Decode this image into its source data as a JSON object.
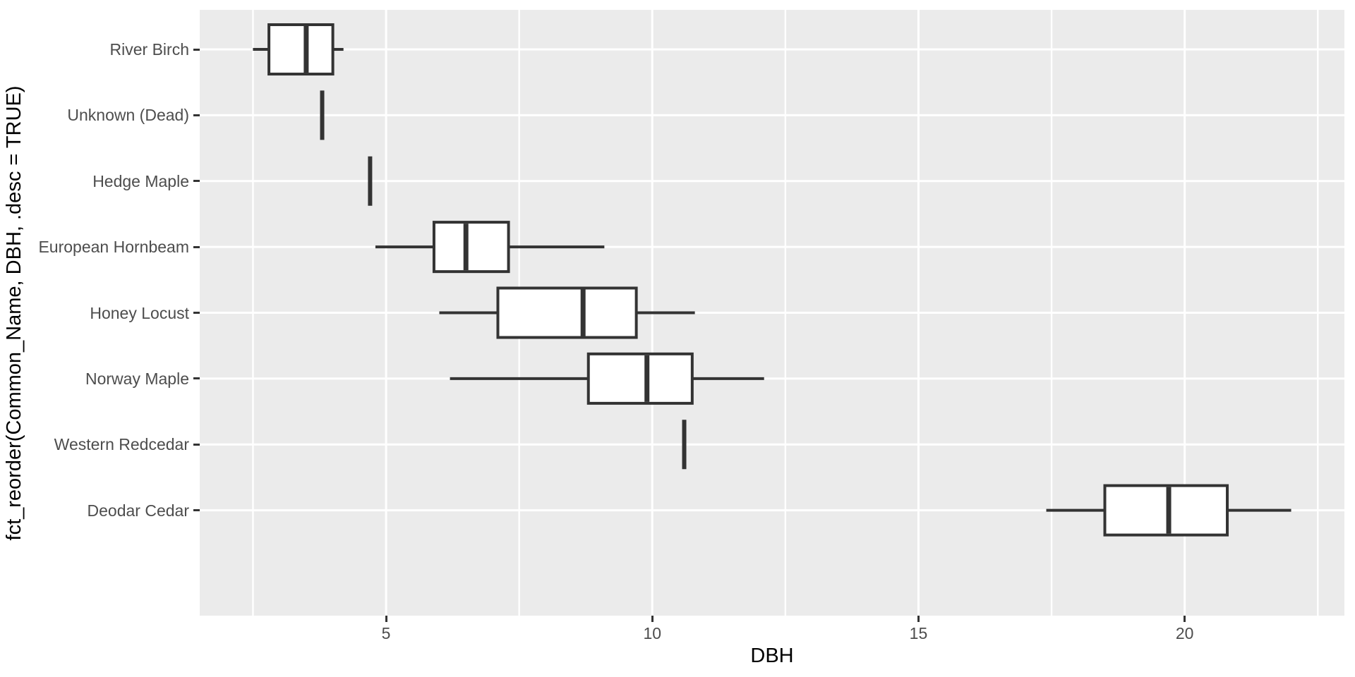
{
  "figure": {
    "background": "#FFFFFF",
    "panel_background": "#EBEBEB",
    "grid_color": "#FFFFFF",
    "box_color": "#333333",
    "box_fill": "#FFFFFF",
    "tick_mark_color": "#333333",
    "tick_label_color": "#4D4D4D",
    "axis_title_color": "#000000"
  },
  "chart_data": {
    "type": "boxplot",
    "orientation": "horizontal",
    "title": "",
    "xlabel": "DBH",
    "ylabel": "fct_reorder(Common_Name, DBH, .desc = TRUE)",
    "xlim": [
      1.5,
      23
    ],
    "x_major_ticks": [
      5,
      10,
      15,
      20
    ],
    "x_minor_gridlines": [
      2.5,
      7.5,
      12.5,
      17.5,
      22.5
    ],
    "grid": true,
    "legend": "none",
    "categories": [
      "River Birch",
      "Unknown (Dead)",
      "Hedge Maple",
      "European Hornbeam",
      "Honey Locust",
      "Norway Maple",
      "Western Redcedar",
      "Deodar Cedar"
    ],
    "series": [
      {
        "name": "River Birch",
        "min": 2.5,
        "q1": 2.8,
        "median": 3.5,
        "q3": 4.0,
        "max": 4.2
      },
      {
        "name": "Unknown (Dead)",
        "min": 3.8,
        "q1": 3.8,
        "median": 3.8,
        "q3": 3.8,
        "max": 3.8
      },
      {
        "name": "Hedge Maple",
        "min": 4.7,
        "q1": 4.7,
        "median": 4.7,
        "q3": 4.7,
        "max": 4.7
      },
      {
        "name": "European Hornbeam",
        "min": 4.8,
        "q1": 5.9,
        "median": 6.5,
        "q3": 7.3,
        "max": 9.1
      },
      {
        "name": "Honey Locust",
        "min": 6.0,
        "q1": 7.1,
        "median": 8.7,
        "q3": 9.7,
        "max": 10.8
      },
      {
        "name": "Norway Maple",
        "min": 6.2,
        "q1": 8.8,
        "median": 9.9,
        "q3": 10.75,
        "max": 12.1
      },
      {
        "name": "Western Redcedar",
        "min": 10.6,
        "q1": 10.6,
        "median": 10.6,
        "q3": 10.6,
        "max": 10.6
      },
      {
        "name": "Deodar Cedar",
        "min": 17.4,
        "q1": 18.5,
        "median": 19.7,
        "q3": 20.8,
        "max": 22.0
      }
    ]
  }
}
